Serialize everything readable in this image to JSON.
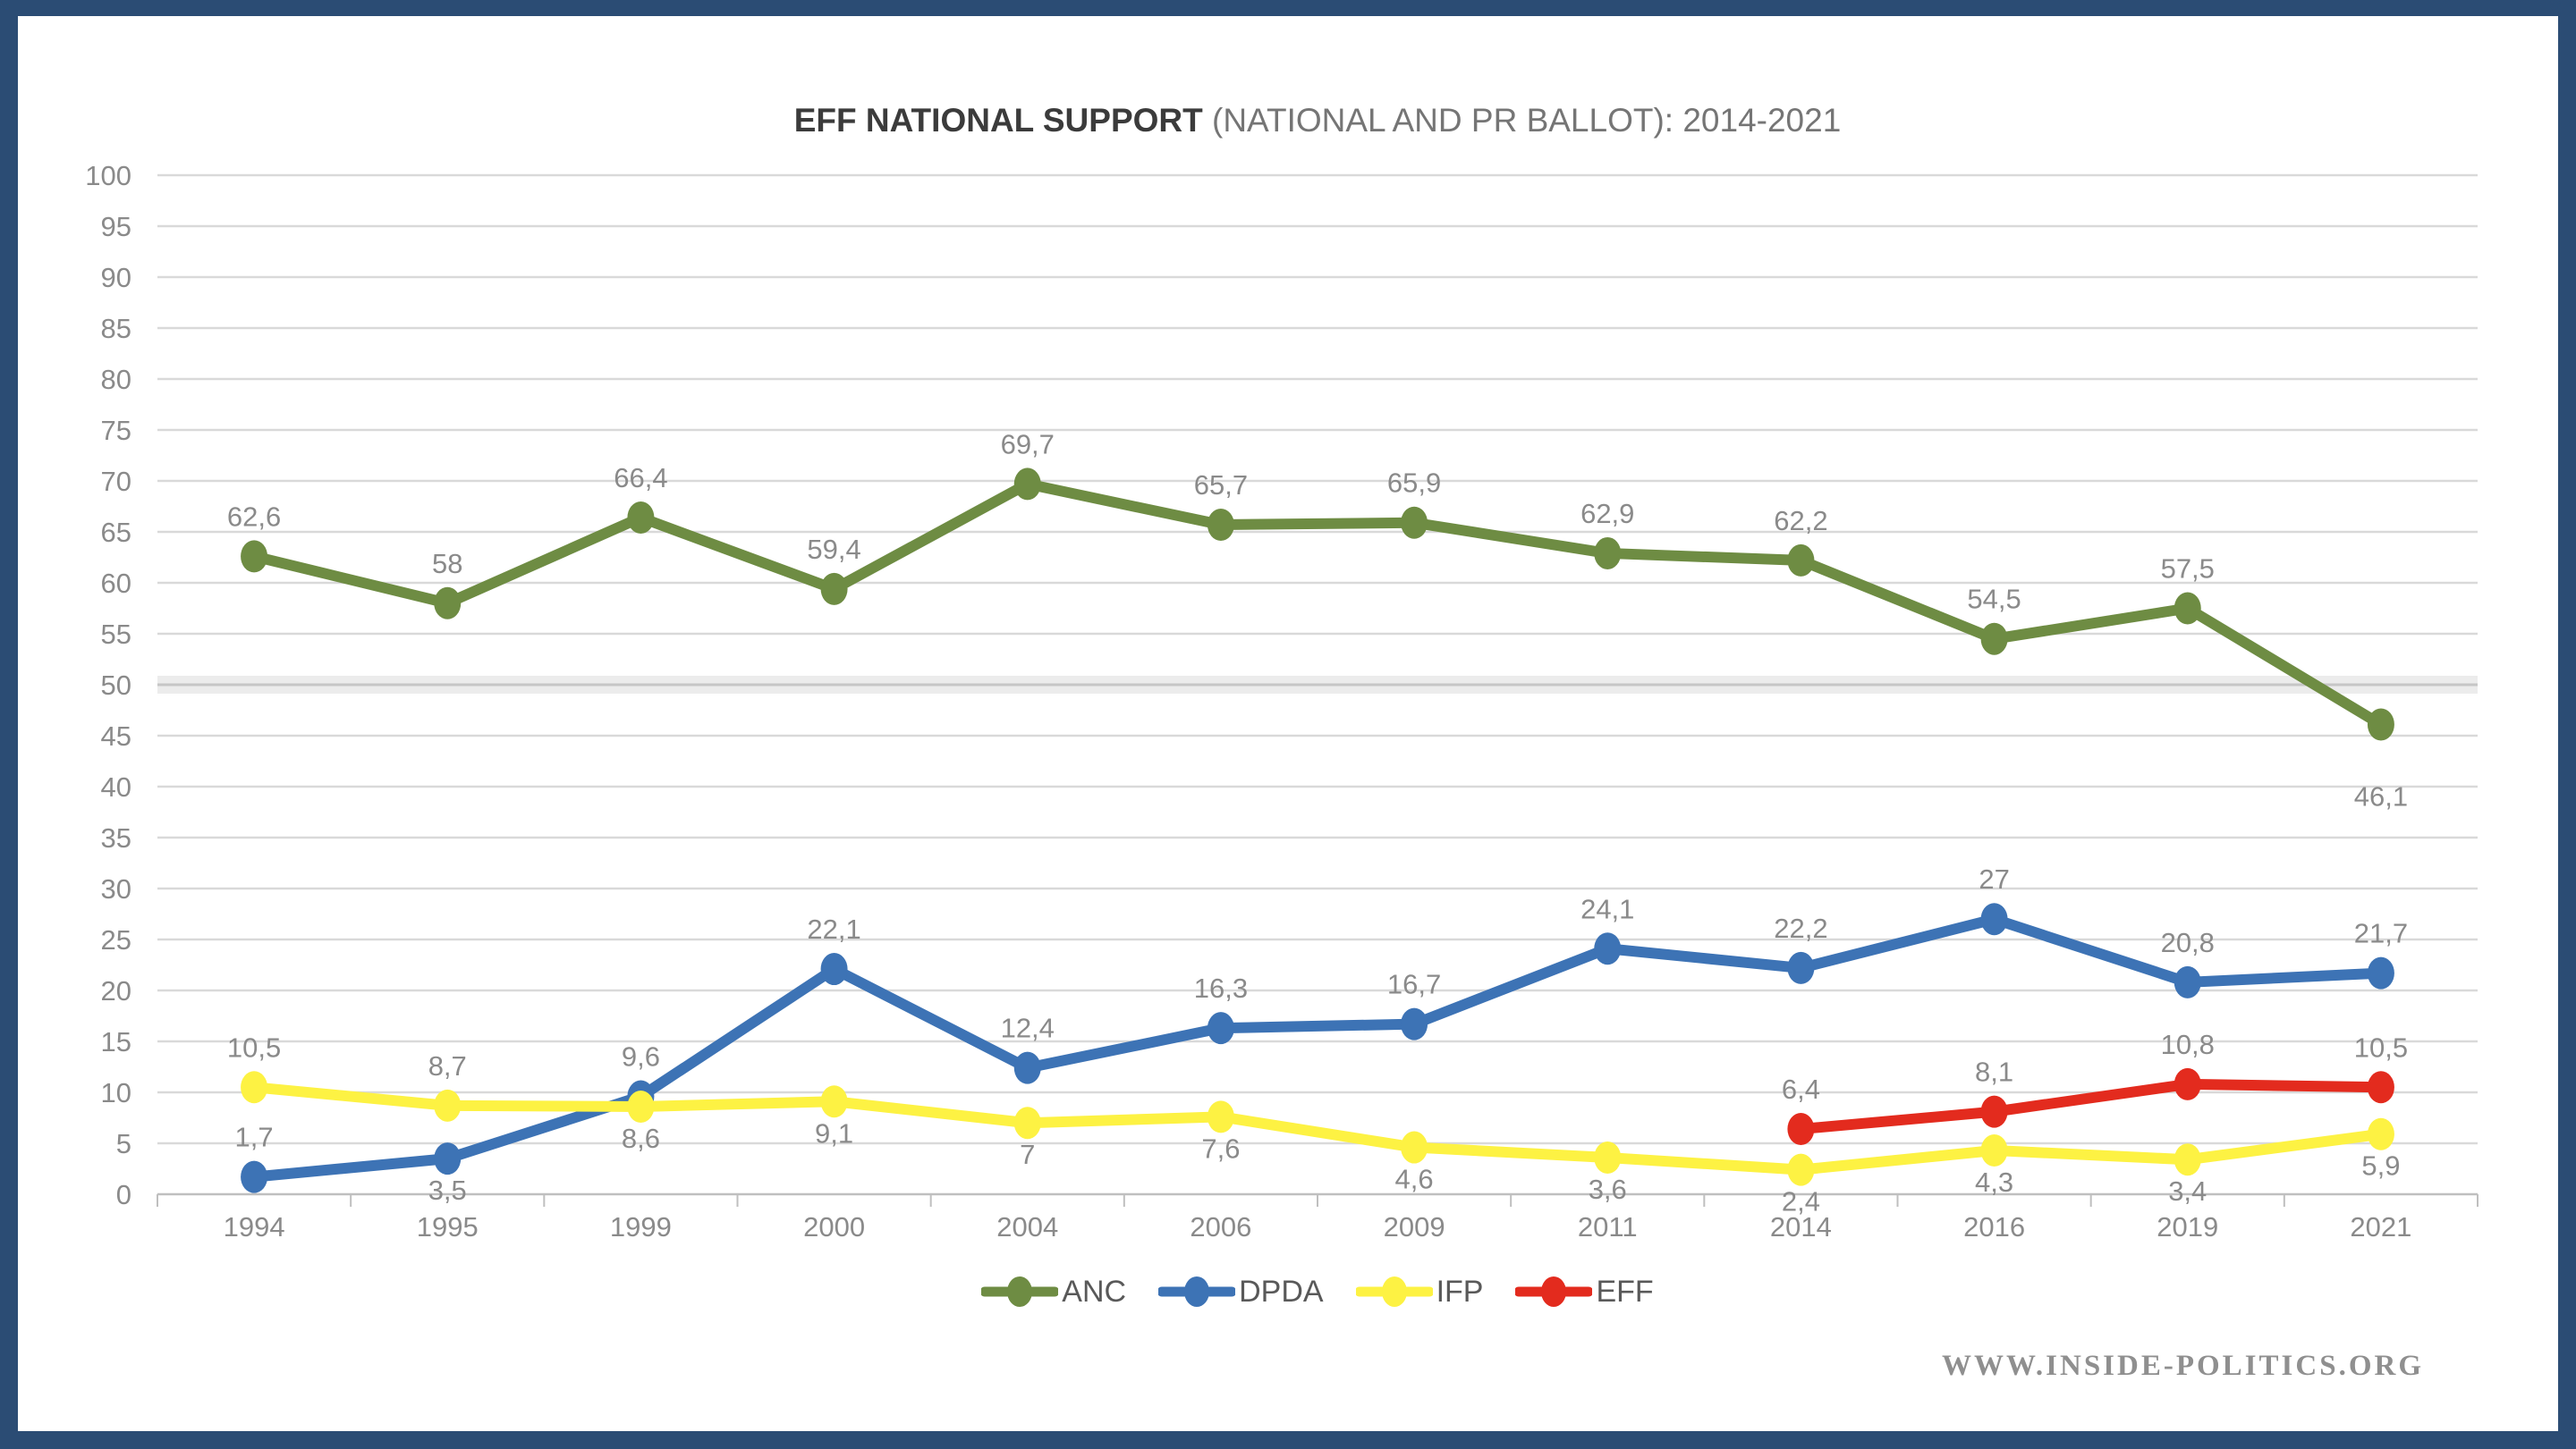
{
  "frame": {
    "border_color": "#2b4c74",
    "background": "#ffffff"
  },
  "title": {
    "bold": "EFF NATIONAL SUPPORT",
    "rest": " (NATIONAL AND PR BALLOT): 2014-2021"
  },
  "watermark": "WWW.INSIDE-POLITICS.ORG",
  "chart_data": {
    "type": "line",
    "title": "EFF NATIONAL SUPPORT (NATIONAL AND PR BALLOT): 2014-2021",
    "categories": [
      "1994",
      "1995",
      "1999",
      "2000",
      "2004",
      "2006",
      "2009",
      "2011",
      "2014",
      "2016",
      "2019",
      "2021"
    ],
    "ylim": [
      0,
      100
    ],
    "ytick_step": 5,
    "grid": true,
    "legend_position": "bottom",
    "reference_band_value": 50,
    "colors": {
      "gridline": "#d9d9d9",
      "axis_line": "#bfbfbf",
      "band_fill": "#ececec",
      "band_line": "#c6c6c6",
      "tick_label": "#8a8a8a",
      "data_label": "#8a8a8a"
    },
    "series": [
      {
        "name": "ANC",
        "color": "#6e8c43",
        "values": [
          62.6,
          58,
          66.4,
          59.4,
          69.7,
          65.7,
          65.9,
          62.9,
          62.2,
          54.5,
          57.5,
          46.1
        ],
        "labels": [
          "62,6",
          "58",
          "66,4",
          "59,4",
          "69,7",
          "65,7",
          "65,9",
          "62,9",
          "62,2",
          "54,5",
          "57,5",
          "46,1"
        ],
        "label_side": [
          "above",
          "above",
          "above",
          "above",
          "above",
          "above",
          "above",
          "above",
          "above",
          "above",
          "above",
          "below_far"
        ]
      },
      {
        "name": "DPDA",
        "color": "#3d73b5",
        "values": [
          1.7,
          3.5,
          9.6,
          22.1,
          12.4,
          16.3,
          16.7,
          24.1,
          22.2,
          27,
          20.8,
          21.7
        ],
        "labels": [
          "1,7",
          "3,5",
          "9,6",
          "22,1",
          "12,4",
          "16,3",
          "16,7",
          "24,1",
          "22,2",
          "27",
          "20,8",
          "21,7"
        ],
        "label_side": [
          "above",
          "below",
          "above",
          "above",
          "above",
          "above",
          "above",
          "above",
          "above",
          "above",
          "above",
          "above"
        ]
      },
      {
        "name": "IFP",
        "color": "#fdf243",
        "values": [
          10.5,
          8.7,
          8.6,
          9.1,
          7,
          7.6,
          4.6,
          3.6,
          2.4,
          4.3,
          3.4,
          5.9
        ],
        "labels": [
          "10,5",
          "8,7",
          "8,6",
          "9,1",
          "7",
          "7,6",
          "4,6",
          "3,6",
          "2,4",
          "4,3",
          "3,4",
          "5,9"
        ],
        "label_side": [
          "above",
          "above",
          "below",
          "below",
          "below",
          "below",
          "below",
          "below",
          "below",
          "below",
          "below",
          "below"
        ]
      },
      {
        "name": "EFF",
        "color": "#e32b1e",
        "values": [
          null,
          null,
          null,
          null,
          null,
          null,
          null,
          null,
          6.4,
          8.1,
          10.8,
          10.5
        ],
        "labels": [
          null,
          null,
          null,
          null,
          null,
          null,
          null,
          null,
          "6,4",
          "8,1",
          "10,8",
          "10,5"
        ],
        "label_side": [
          null,
          null,
          null,
          null,
          null,
          null,
          null,
          null,
          "above",
          "above",
          "above",
          "above"
        ]
      }
    ]
  }
}
